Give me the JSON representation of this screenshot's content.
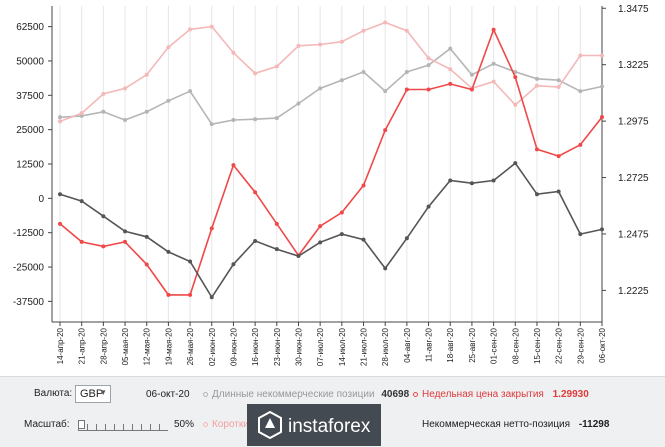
{
  "chart_data": {
    "type": "line",
    "x": [
      "14-апр-20",
      "21-апр-20",
      "28-апр-20",
      "05-мая-20",
      "12-мая-20",
      "19-мая-20",
      "26-мая-20",
      "02-июн-20",
      "09-июн-20",
      "16-июн-20",
      "23-июн-20",
      "30-июн-20",
      "07-июл-20",
      "14-июл-20",
      "21-июл-20",
      "28-июл-20",
      "04-авг-20",
      "11-авг-20",
      "18-авг-20",
      "25-авг-20",
      "01-сен-20",
      "08-сен-20",
      "15-сен-20",
      "22-сен-20",
      "29-сен-20",
      "06-окт-20"
    ],
    "y_left_ticks": [
      "62500",
      "50000",
      "37500",
      "25000",
      "12500",
      "0",
      "-12500",
      "-25000",
      "-37500"
    ],
    "y_left_lim": [
      -45000,
      70000
    ],
    "y_right_ticks": [
      "1.3475",
      "1.3225",
      "1.2975",
      "1.2725",
      "1.2475",
      "1.2225"
    ],
    "y_right_lim": [
      1.2085,
      1.3485
    ],
    "series": [
      {
        "name": "Длинные некоммерческие позиции",
        "color": "#b5b5b5",
        "axis": "left",
        "values": [
          29500,
          30000,
          31500,
          28500,
          31500,
          35500,
          39000,
          27000,
          28500,
          28800,
          29200,
          34500,
          40000,
          43000,
          46000,
          39000,
          46000,
          48500,
          54500,
          45000,
          49000,
          46000,
          43500,
          43000,
          39000,
          40698
        ]
      },
      {
        "name": "Короткие некоммерческие позиции",
        "color": "#f4b8b8",
        "axis": "left",
        "values": [
          28000,
          31000,
          38000,
          40000,
          45000,
          55000,
          61500,
          62500,
          53000,
          45500,
          48000,
          55500,
          56000,
          57000,
          61000,
          64000,
          61000,
          51000,
          47000,
          40000,
          42500,
          34000,
          41000,
          40500,
          52000,
          52000
        ]
      },
      {
        "name": "Недельная цена закрытия",
        "color": "#f04848",
        "axis": "right",
        "values": [
          1.252,
          1.244,
          1.242,
          1.244,
          1.234,
          1.2205,
          1.2205,
          1.25,
          1.278,
          1.266,
          1.252,
          1.238,
          1.251,
          1.257,
          1.269,
          1.2935,
          1.3115,
          1.3115,
          1.314,
          1.3115,
          1.338,
          1.317,
          1.285,
          1.282,
          1.287,
          1.2993
        ]
      },
      {
        "name": "Некоммерческая нетто-позиция",
        "color": "#555555",
        "axis": "left",
        "values": [
          1500,
          -1000,
          -6500,
          -12000,
          -14000,
          -19500,
          -23000,
          -36000,
          -24000,
          -15500,
          -18500,
          -21000,
          -16000,
          -13000,
          -15000,
          -25500,
          -14500,
          -3000,
          6500,
          5500,
          6500,
          12800,
          1500,
          2500,
          -13000,
          -11298
        ]
      }
    ]
  },
  "panel": {
    "currency_label": "Валюта:",
    "currency_value": "GBP",
    "date": "06-окт-20",
    "long_label": "Длинные некоммерческие позиции",
    "long_value": "40698",
    "close_label": "Недельная цена закрытия",
    "close_value": "1.29930",
    "scale_label": "Масштаб:",
    "scale_value": "50%",
    "short_label": "Коротки",
    "net_label": "Некоммерческая нетто-позиция",
    "net_value": "-11298"
  },
  "watermark": "instaforex",
  "colors": {
    "grid": "#e6e6e6",
    "axis": "#444444",
    "panel_bg": "#eef0f2"
  }
}
